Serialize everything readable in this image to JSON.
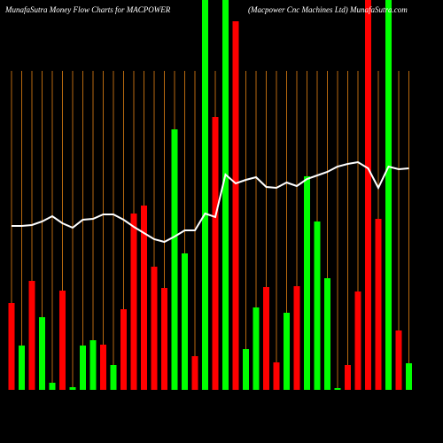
{
  "chart_data": {
    "type": "bar",
    "title": "MunafaSutra  Money Flow  Charts for MACPOWER",
    "subtitle": "(Macpower Cnc Machines Ltd) MunafaSutra.com",
    "values": [
      98,
      50,
      123,
      82,
      8,
      112,
      3,
      50,
      56,
      51,
      28,
      91,
      199,
      208,
      139,
      115,
      294,
      154,
      38,
      440,
      308,
      440,
      416,
      46,
      93,
      116,
      31,
      87,
      117,
      241,
      190,
      126,
      2,
      28,
      111,
      440,
      193,
      440,
      67,
      30
    ],
    "colors": [
      "#ff0000",
      "#00ff00",
      "#ff0000",
      "#00ff00",
      "#00ff00",
      "#ff0000",
      "#00ff00",
      "#00ff00",
      "#00ff00",
      "#ff0000",
      "#00ff00",
      "#ff0000",
      "#ff0000",
      "#ff0000",
      "#ff0000",
      "#ff0000",
      "#00ff00",
      "#00ff00",
      "#ff0000",
      "#00ff00",
      "#ff0000",
      "#00ff00",
      "#ff0000",
      "#00ff00",
      "#00ff00",
      "#ff0000",
      "#ff0000",
      "#00ff00",
      "#ff0000",
      "#00ff00",
      "#00ff00",
      "#00ff00",
      "#00ff00",
      "#ff0000",
      "#ff0000",
      "#ff0000",
      "#ff0000",
      "#00ff00",
      "#ff0000",
      "#00ff00"
    ],
    "line_values": [
      185,
      185,
      186,
      190,
      196,
      188,
      183,
      192,
      193,
      198,
      198,
      192,
      184,
      177,
      170,
      167,
      173,
      180,
      180,
      199,
      195,
      243,
      233,
      237,
      240,
      229,
      228,
      234,
      230,
      238,
      242,
      246,
      252,
      255,
      257,
      250,
      228,
      252,
      249,
      250
    ],
    "line_color": "#ffffff",
    "grid_color": "#b8690f",
    "ylim": [
      0,
      440
    ]
  }
}
